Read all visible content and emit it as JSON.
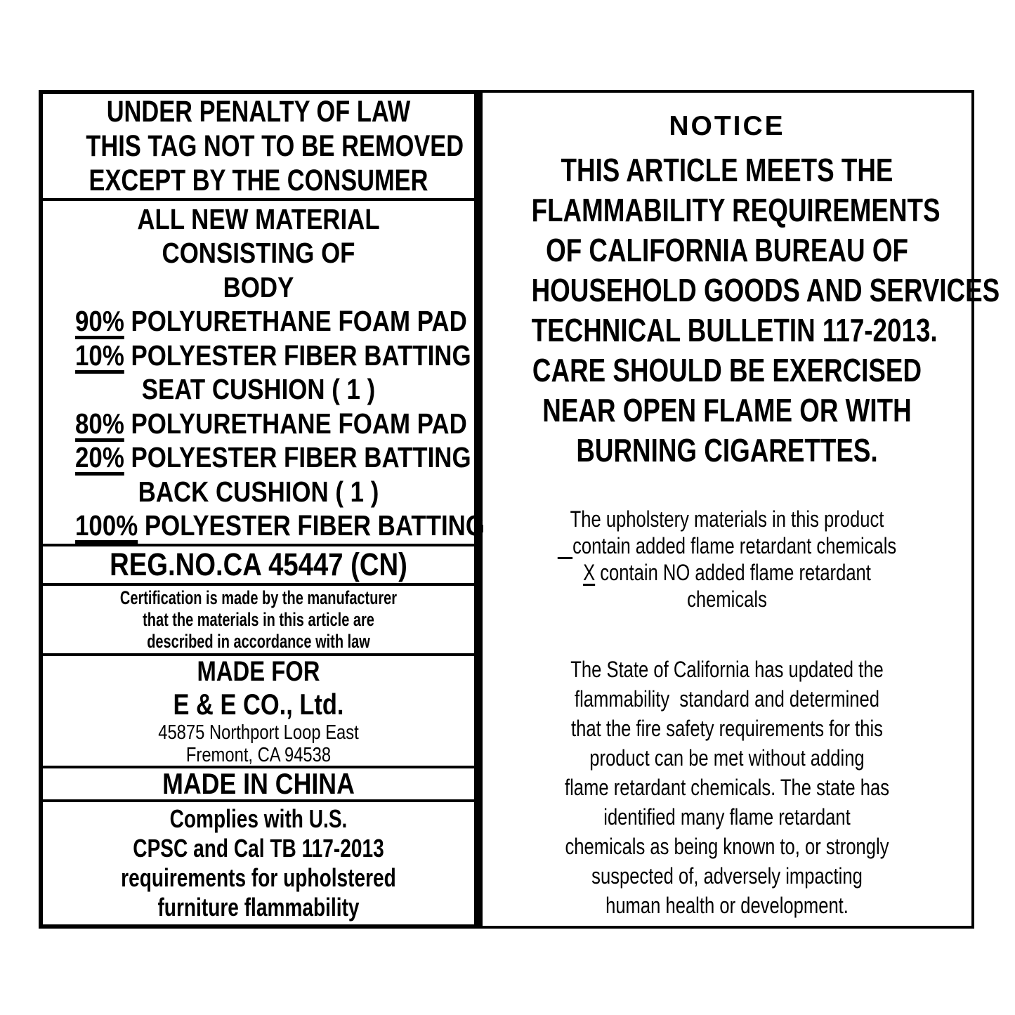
{
  "colors": {
    "ink": "#000000",
    "paper": "#ffffff"
  },
  "label": {
    "left": {
      "penalty_lines": [
        "UNDER PENALTY OF LAW",
        "THIS TAG NOT TO BE REMOVED",
        "EXCEPT BY THE CONSUMER"
      ],
      "materials_lines": [
        {
          "u": "",
          "t": "ALL NEW MATERIAL"
        },
        {
          "u": "",
          "t": "CONSISTING OF"
        },
        {
          "u": "",
          "t": "BODY"
        },
        {
          "u": "90%",
          "t": " POLYURETHANE FOAM PAD"
        },
        {
          "u": "10%",
          "t": " POLYESTER FIBER BATTING"
        },
        {
          "u": "",
          "t": "SEAT CUSHION ( 1 )"
        },
        {
          "u": "80%",
          "t": " POLYURETHANE FOAM PAD"
        },
        {
          "u": "20%",
          "t": " POLYESTER FIBER BATTING"
        },
        {
          "u": "",
          "t": "BACK CUSHION ( 1 )"
        },
        {
          "u": "100%",
          "t": " POLYESTER FIBER BATTING"
        }
      ],
      "reg_no": "REG.NO.CA 45447 (CN)",
      "certification_lines": [
        "Certification is made by the manufacturer",
        "that the materials in this article are",
        "described in accordance with law"
      ],
      "made_for": {
        "title": "MADE FOR",
        "company": "E & E CO., Ltd.",
        "address1": "45875 Northport Loop East",
        "address2": "Fremont, CA 94538"
      },
      "made_in": "MADE IN CHINA",
      "complies_lines": [
        "Complies with U.S.",
        "CPSC and Cal TB 117-2013",
        "requirements for upholstered",
        "furniture flammability"
      ]
    },
    "right": {
      "notice_title": "NOTICE",
      "heading_lines": [
        "THIS ARTICLE MEETS THE",
        "FLAMMABILITY REQUIREMENTS",
        "OF CALIFORNIA BUREAU OF",
        "HOUSEHOLD GOODS AND SERVICES",
        "TECHNICAL BULLETIN 117-2013.",
        "CARE SHOULD BE EXERCISED",
        "NEAR OPEN FLAME OR WITH",
        "BURNING CIGARETTES."
      ],
      "fr_statement_lines": [
        {
          "u": "",
          "t": "The upholstery materials in this product"
        },
        {
          "u": "   ",
          "t": "contain added flame retardant chemicals"
        },
        {
          "u": "X",
          "t": " contain NO added flame retardant"
        },
        {
          "u": "",
          "t": "chemicals"
        }
      ],
      "state_paragraph_lines": [
        "The State of California has updated the",
        "flammability  standard and determined",
        "that the fire safety requirements for this",
        "product can be met without adding",
        "flame retardant chemicals. The state has",
        "identified many flame retardant",
        "chemicals as being known to, or strongly",
        "suspected of, adversely impacting",
        "human health or development."
      ]
    }
  }
}
